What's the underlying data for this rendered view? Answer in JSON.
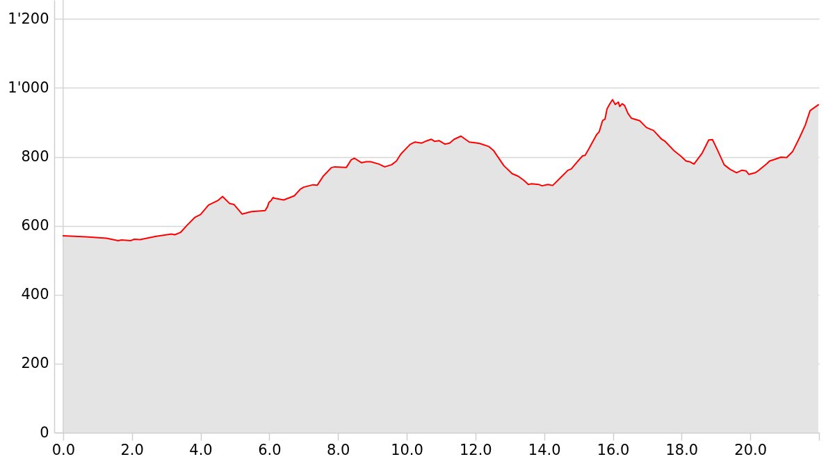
{
  "chart_data": {
    "type": "area",
    "x": [
      0,
      0.66,
      1.26,
      1.6,
      1.7,
      1.97,
      2.07,
      2.24,
      2.68,
      3.15,
      3.25,
      3.42,
      3.62,
      3.83,
      4.0,
      4.23,
      4.5,
      4.64,
      4.84,
      4.97,
      5.21,
      5.48,
      5.88,
      5.95,
      5.99,
      6.05,
      6.11,
      6.15,
      6.42,
      6.73,
      6.9,
      7.0,
      7.27,
      7.4,
      7.57,
      7.81,
      7.91,
      8.24,
      8.38,
      8.48,
      8.68,
      8.82,
      8.95,
      9.19,
      9.36,
      9.56,
      9.7,
      9.83,
      10.0,
      10.1,
      10.24,
      10.44,
      10.57,
      10.71,
      10.81,
      10.94,
      11.11,
      11.25,
      11.38,
      11.58,
      11.82,
      11.99,
      12.12,
      12.39,
      12.53,
      12.83,
      13.07,
      13.24,
      13.41,
      13.54,
      13.64,
      13.84,
      13.94,
      14.11,
      14.25,
      14.49,
      14.69,
      14.79,
      14.96,
      15.12,
      15.19,
      15.29,
      15.53,
      15.6,
      15.7,
      15.77,
      15.83,
      15.9,
      15.99,
      16.07,
      16.16,
      16.2,
      16.27,
      16.34,
      16.44,
      16.54,
      16.78,
      16.98,
      17.12,
      17.18,
      17.42,
      17.52,
      17.79,
      17.99,
      18.13,
      18.23,
      18.36,
      18.43,
      18.6,
      18.79,
      18.9,
      19.04,
      19.24,
      19.41,
      19.6,
      19.75,
      19.88,
      19.96,
      20.15,
      20.25,
      20.49,
      20.56,
      20.69,
      20.89,
      21.06,
      21.23,
      21.43,
      21.6,
      21.74,
      21.98
    ],
    "series": [
      {
        "color": "#ff0000",
        "values": [
          571,
          568,
          564,
          557,
          559,
          557,
          561,
          560,
          569,
          576,
          574,
          581,
          603,
          624,
          633,
          660,
          673,
          685,
          665,
          662,
          634,
          641,
          644,
          656,
          668,
          673,
          682,
          680,
          675,
          687,
          706,
          712,
          719,
          718,
          744,
          769,
          771,
          769,
          791,
          796,
          783,
          786,
          786,
          779,
          771,
          777,
          788,
          808,
          826,
          836,
          843,
          840,
          846,
          851,
          845,
          847,
          837,
          840,
          851,
          860,
          843,
          841,
          839,
          830,
          818,
          774,
          751,
          744,
          732,
          720,
          722,
          720,
          716,
          720,
          717,
          741,
          761,
          765,
          785,
          803,
          804,
          821,
          865,
          872,
          905,
          909,
          939,
          952,
          966,
          952,
          959,
          946,
          954,
          949,
          926,
          912,
          905,
          885,
          879,
          877,
          851,
          845,
          817,
          801,
          788,
          786,
          779,
          788,
          811,
          849,
          850,
          821,
          777,
          764,
          754,
          761,
          759,
          749,
          754,
          761,
          781,
          788,
          792,
          799,
          798,
          815,
          855,
          892,
          934,
          951
        ]
      }
    ],
    "xlim": [
      -0.26,
      22
    ],
    "xticks": [
      {
        "value": 0,
        "label": "0.0"
      },
      {
        "value": 2,
        "label": "2.0"
      },
      {
        "value": 4,
        "label": "4.0"
      },
      {
        "value": 6,
        "label": "6.0"
      },
      {
        "value": 8,
        "label": "8.0"
      },
      {
        "value": 10,
        "label": "10.0"
      },
      {
        "value": 12,
        "label": "12.0"
      },
      {
        "value": 14,
        "label": "14.0"
      },
      {
        "value": 16,
        "label": "16.0"
      },
      {
        "value": 18,
        "label": "18.0"
      },
      {
        "value": 20,
        "label": "20.0"
      },
      {
        "value": 22,
        "label": null
      }
    ],
    "ylim": [
      0,
      1255
    ],
    "yticks": [
      0,
      200,
      400,
      600,
      800,
      {
        "value": 1000,
        "label": "1'000"
      },
      {
        "value": 1200,
        "label": "1'200"
      }
    ],
    "grid": "y",
    "ref_lines": [
      {
        "axis": "x",
        "value": 0,
        "color": "#d3d3d3"
      }
    ]
  }
}
